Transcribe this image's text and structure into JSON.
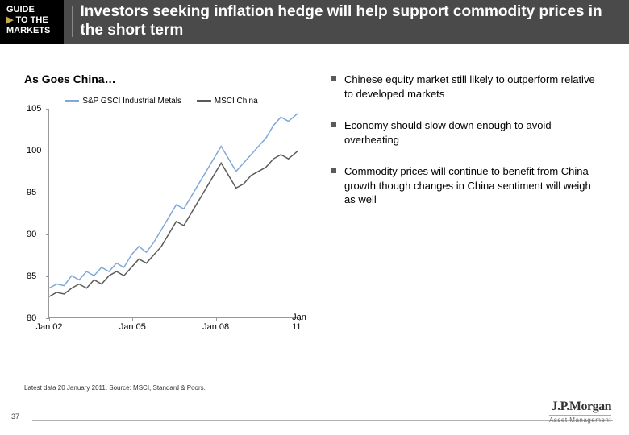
{
  "guide": {
    "line1": "GUIDE",
    "line2": "TO THE",
    "line3": "MARKETS"
  },
  "header_title": "Investors seeking inflation hedge will help support commodity prices in the short term",
  "chart": {
    "title": "As Goes China…",
    "type": "line",
    "legend": [
      {
        "label": "S&P GSCI Industrial Metals",
        "color": "#7fa8d9"
      },
      {
        "label": "MSCI China",
        "color": "#5a5a5a"
      }
    ],
    "ylim": [
      80,
      105
    ],
    "ytick_step": 5,
    "yticks": [
      80,
      85,
      90,
      95,
      100,
      105
    ],
    "xticks": [
      "Jan 02",
      "Jan 05",
      "Jan 08",
      "Jan 11"
    ],
    "background_color": "#ffffff",
    "line_width": 1.5,
    "series": [
      {
        "name": "S&P GSCI Industrial Metals",
        "color": "#7fa8d9",
        "points": [
          [
            0.0,
            83.5
          ],
          [
            0.03,
            84.0
          ],
          [
            0.06,
            83.8
          ],
          [
            0.09,
            85.0
          ],
          [
            0.12,
            84.5
          ],
          [
            0.15,
            85.5
          ],
          [
            0.18,
            85.0
          ],
          [
            0.21,
            86.0
          ],
          [
            0.24,
            85.5
          ],
          [
            0.27,
            86.5
          ],
          [
            0.3,
            86.0
          ],
          [
            0.33,
            87.5
          ],
          [
            0.36,
            88.5
          ],
          [
            0.39,
            87.8
          ],
          [
            0.42,
            89.0
          ],
          [
            0.45,
            90.5
          ],
          [
            0.48,
            92.0
          ],
          [
            0.51,
            93.5
          ],
          [
            0.54,
            93.0
          ],
          [
            0.57,
            94.5
          ],
          [
            0.6,
            96.0
          ],
          [
            0.63,
            97.5
          ],
          [
            0.66,
            99.0
          ],
          [
            0.69,
            100.5
          ],
          [
            0.72,
            99.0
          ],
          [
            0.75,
            97.5
          ],
          [
            0.78,
            98.5
          ],
          [
            0.81,
            99.5
          ],
          [
            0.84,
            100.5
          ],
          [
            0.87,
            101.5
          ],
          [
            0.9,
            103.0
          ],
          [
            0.93,
            104.0
          ],
          [
            0.96,
            103.5
          ],
          [
            1.0,
            104.5
          ]
        ]
      },
      {
        "name": "MSCI China",
        "color": "#5a5a5a",
        "points": [
          [
            0.0,
            82.5
          ],
          [
            0.03,
            83.0
          ],
          [
            0.06,
            82.8
          ],
          [
            0.09,
            83.5
          ],
          [
            0.12,
            84.0
          ],
          [
            0.15,
            83.5
          ],
          [
            0.18,
            84.5
          ],
          [
            0.21,
            84.0
          ],
          [
            0.24,
            85.0
          ],
          [
            0.27,
            85.5
          ],
          [
            0.3,
            85.0
          ],
          [
            0.33,
            86.0
          ],
          [
            0.36,
            87.0
          ],
          [
            0.39,
            86.5
          ],
          [
            0.42,
            87.5
          ],
          [
            0.45,
            88.5
          ],
          [
            0.48,
            90.0
          ],
          [
            0.51,
            91.5
          ],
          [
            0.54,
            91.0
          ],
          [
            0.57,
            92.5
          ],
          [
            0.6,
            94.0
          ],
          [
            0.63,
            95.5
          ],
          [
            0.66,
            97.0
          ],
          [
            0.69,
            98.5
          ],
          [
            0.72,
            97.0
          ],
          [
            0.75,
            95.5
          ],
          [
            0.78,
            96.0
          ],
          [
            0.81,
            97.0
          ],
          [
            0.84,
            97.5
          ],
          [
            0.87,
            98.0
          ],
          [
            0.9,
            99.0
          ],
          [
            0.93,
            99.5
          ],
          [
            0.96,
            99.0
          ],
          [
            1.0,
            100.0
          ]
        ]
      }
    ]
  },
  "bullets": [
    "Chinese equity market still likely to outperform relative to developed markets",
    "Economy should slow down enough to avoid overheating",
    "Commodity prices will continue to benefit from China growth though changes in China sentiment will weigh as well"
  ],
  "source": "Latest data 20 January 2011. Source: MSCI, Standard & Poors.",
  "page_number": "37",
  "logo": {
    "main": "J.P.Morgan",
    "sub": "Asset Management"
  }
}
